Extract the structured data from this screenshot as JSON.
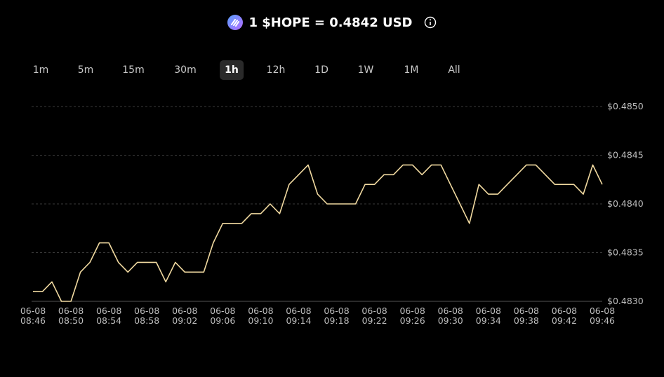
{
  "header": {
    "title": "1 $HOPE = 0.4842 USD"
  },
  "timeframes": {
    "options": [
      "1m",
      "5m",
      "15m",
      "30m",
      "1h",
      "12h",
      "1D",
      "1W",
      "1M",
      "All"
    ],
    "selected": 4
  },
  "chart_data": {
    "type": "line",
    "categories": [
      "06-08 08:46",
      null,
      null,
      null,
      "06-08 08:50",
      null,
      null,
      null,
      "06-08 08:54",
      null,
      null,
      null,
      "06-08 08:58",
      null,
      null,
      null,
      "06-08 09:02",
      null,
      null,
      null,
      "06-08 09:06",
      null,
      null,
      null,
      "06-08 09:10",
      null,
      null,
      null,
      "06-08 09:14",
      null,
      null,
      null,
      "06-08 09:18",
      null,
      null,
      null,
      "06-08 09:22",
      null,
      null,
      null,
      "06-08 09:26",
      null,
      null,
      null,
      "06-08 09:30",
      null,
      null,
      null,
      "06-08 09:34",
      null,
      null,
      null,
      "06-08 09:38",
      null,
      null,
      null,
      "06-08 09:42",
      null,
      null,
      null,
      "06-08 09:46"
    ],
    "values": [
      0.4831,
      0.4831,
      0.4832,
      0.483,
      0.483,
      0.4833,
      0.4834,
      0.4836,
      0.4836,
      0.4834,
      0.4833,
      0.4834,
      0.4834,
      0.4834,
      0.4832,
      0.4834,
      0.4833,
      0.4833,
      0.4833,
      0.4836,
      0.4838,
      0.4838,
      0.4838,
      0.4839,
      0.4839,
      0.484,
      0.4839,
      0.4842,
      0.4843,
      0.4844,
      0.4841,
      0.484,
      0.484,
      0.484,
      0.484,
      0.4842,
      0.4842,
      0.4843,
      0.4843,
      0.4844,
      0.4844,
      0.4843,
      0.4844,
      0.4844,
      0.4842,
      0.484,
      0.4838,
      0.4842,
      0.4841,
      0.4841,
      0.4842,
      0.4843,
      0.4844,
      0.4844,
      0.4843,
      0.4842,
      0.4842,
      0.4842,
      0.4841,
      0.4844,
      0.4842
    ],
    "color": "#f0d9a0",
    "ylim": [
      0.483,
      0.485
    ],
    "yticks": [
      {
        "value": 0.483,
        "label": "$0.4830"
      },
      {
        "value": 0.4835,
        "label": "$0.4835"
      },
      {
        "value": 0.484,
        "label": "$0.4840"
      },
      {
        "value": 0.4845,
        "label": "$0.4845"
      },
      {
        "value": 0.485,
        "label": "$0.4850"
      }
    ],
    "grid": true
  }
}
